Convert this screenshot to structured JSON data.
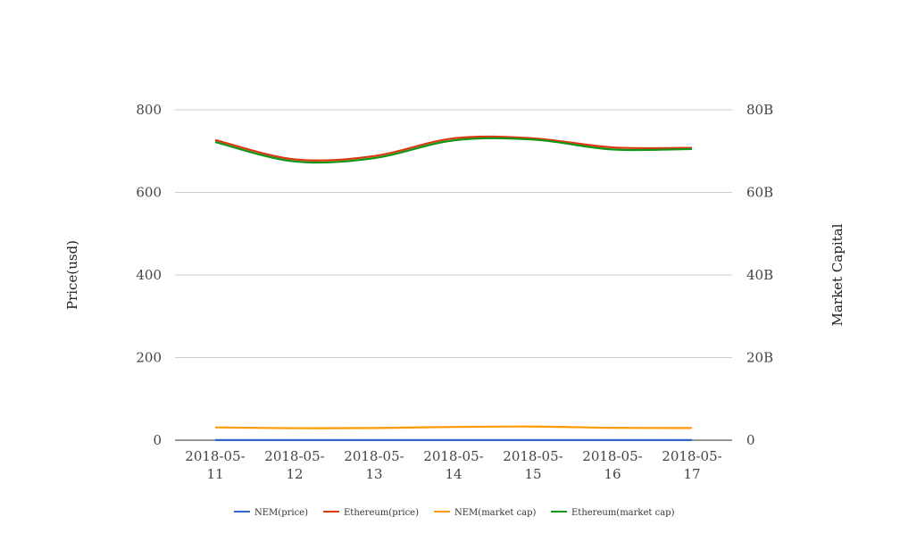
{
  "chart_data": {
    "type": "line",
    "categories": [
      "2018-05-11",
      "2018-05-12",
      "2018-05-13",
      "2018-05-14",
      "2018-05-15",
      "2018-05-16",
      "2018-05-17"
    ],
    "category_lines": [
      [
        "2018-05-",
        "11"
      ],
      [
        "2018-05-",
        "12"
      ],
      [
        "2018-05-",
        "13"
      ],
      [
        "2018-05-",
        "14"
      ],
      [
        "2018-05-",
        "15"
      ],
      [
        "2018-05-",
        "16"
      ],
      [
        "2018-05-",
        "17"
      ]
    ],
    "ylabel": "Price(usd)",
    "y2label": "Market Capital",
    "ylim": [
      0,
      800
    ],
    "y2lim": [
      0,
      80000000000
    ],
    "yticks": [
      0,
      200,
      400,
      600,
      800
    ],
    "yticklabels": [
      "0",
      "200",
      "400",
      "600",
      "800"
    ],
    "y2ticklabels": [
      "0",
      "20B",
      "40B",
      "60B",
      "80B"
    ],
    "grid": true,
    "legend_position": "bottom",
    "series": [
      {
        "name": "NEM(price)",
        "axis": "left",
        "color": "#3366cc",
        "values": [
          0.32,
          0.3,
          0.3,
          0.31,
          0.32,
          0.29,
          0.28
        ]
      },
      {
        "name": "Ethereum(price)",
        "axis": "left",
        "color": "#dc3912",
        "values": [
          727,
          680,
          688,
          731,
          731,
          709,
          708
        ]
      },
      {
        "name": "NEM(market cap)",
        "axis": "right",
        "color": "#ff9900",
        "values": [
          3100000000,
          2900000000,
          2950000000,
          3200000000,
          3300000000,
          3000000000,
          2950000000
        ]
      },
      {
        "name": "Ethereum(market cap)",
        "axis": "right",
        "color": "#109618",
        "values": [
          72200000000,
          67500000000,
          68300000000,
          72600000000,
          72800000000,
          70400000000,
          70500000000
        ]
      }
    ]
  }
}
